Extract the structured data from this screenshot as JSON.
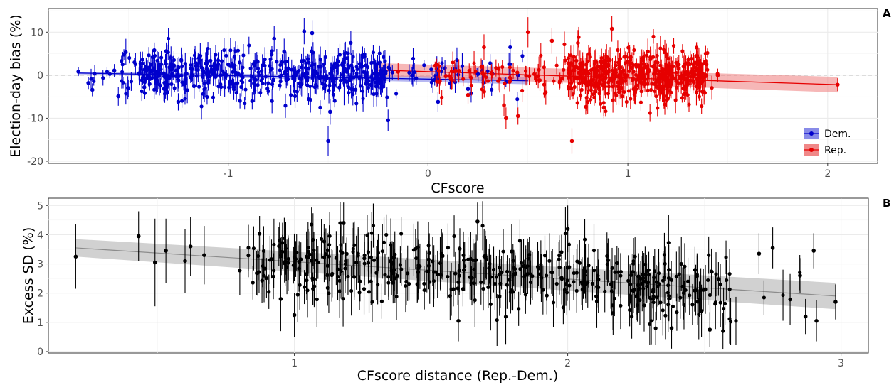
{
  "chart_data": [
    {
      "panel": "A",
      "type": "scatter",
      "title": "",
      "xlabel": "CFscore",
      "ylabel": "Election-day bias (%)",
      "xlim": [
        -1.9,
        2.25
      ],
      "ylim": [
        -20.5,
        15.5
      ],
      "xticks": [
        -1,
        0,
        1,
        2
      ],
      "xtick_labels": [
        "-1",
        "0",
        "1",
        "2"
      ],
      "yticks": [
        -20,
        -10,
        0,
        10
      ],
      "ytick_labels": [
        "-20",
        "-10",
        "0",
        "10"
      ],
      "reference_line": {
        "y": 0,
        "style": "dashed",
        "color": "#a6a6a6"
      },
      "grid": true,
      "legend": {
        "position": "bottom-right",
        "entries": [
          "Dem.",
          "Rep."
        ]
      },
      "series": [
        {
          "name": "Dem.",
          "color": "#0000cc",
          "n_points": 560,
          "x_range": [
            -1.75,
            0.5
          ],
          "y_center": 0.5,
          "points": [
            {
              "x": -1.75,
              "y": 0.8,
              "err": 1.0
            },
            {
              "x": -1.7,
              "y": -1.8,
              "err": 1.4
            },
            {
              "x": -1.68,
              "y": -3.4,
              "err": 1.5
            },
            {
              "x": -1.57,
              "y": 1.1,
              "err": 1.5
            },
            {
              "x": -1.55,
              "y": -4.9,
              "err": 2.2
            },
            {
              "x": -1.5,
              "y": -3.0,
              "err": 2.0
            },
            {
              "x": -1.42,
              "y": -2.8,
              "err": 2.0
            },
            {
              "x": -1.37,
              "y": 5.8,
              "err": 1.8
            },
            {
              "x": -1.31,
              "y": 5.6,
              "err": 2.0
            },
            {
              "x": -1.25,
              "y": -6.2,
              "err": 2.0
            },
            {
              "x": -1.14,
              "y": 4.5,
              "err": 3.0
            },
            {
              "x": -1.0,
              "y": 2.5,
              "err": 3.0
            },
            {
              "x": -0.88,
              "y": -6.0,
              "err": 2.0
            },
            {
              "x": -0.77,
              "y": 8.5,
              "err": 3.0
            },
            {
              "x": -0.72,
              "y": 5.5,
              "err": 3.0
            },
            {
              "x": -0.62,
              "y": 10.2,
              "err": 3.0
            },
            {
              "x": -0.58,
              "y": 9.8,
              "err": 3.0
            },
            {
              "x": -0.5,
              "y": -15.3,
              "err": 3.5
            },
            {
              "x": -0.49,
              "y": -8.5,
              "err": 3.0
            },
            {
              "x": -0.42,
              "y": -1.0,
              "err": 6.0
            },
            {
              "x": -0.31,
              "y": -2.0,
              "err": 3.0
            },
            {
              "x": -0.2,
              "y": -10.5,
              "err": 2.5
            },
            {
              "x": -0.08,
              "y": -0.1,
              "err": 2.0
            },
            {
              "x": 0.05,
              "y": -6.2,
              "err": 2.3
            },
            {
              "x": 0.2,
              "y": -3.2,
              "err": 1.5
            },
            {
              "x": 0.45,
              "y": 0.0,
              "err": 1.0
            }
          ],
          "fit": {
            "x": [
              -1.75,
              0.5
            ],
            "y": [
              0.5,
              -1.3
            ],
            "ci": [
              [
                0.2,
                0.8
              ],
              [
                -2.1,
                -0.5
              ]
            ]
          }
        },
        {
          "name": "Rep.",
          "color": "#e60000",
          "n_points": 560,
          "x_range": [
            -0.25,
            2.05
          ],
          "y_center": 0.0,
          "points": [
            {
              "x": -0.15,
              "y": 0.8,
              "err": 2.0
            },
            {
              "x": 0.12,
              "y": -1.2,
              "err": 2.0
            },
            {
              "x": 0.2,
              "y": -4.6,
              "err": 2.0
            },
            {
              "x": 0.28,
              "y": 6.5,
              "err": 3.0
            },
            {
              "x": 0.38,
              "y": -7.0,
              "err": 2.5
            },
            {
              "x": 0.39,
              "y": -10.0,
              "err": 2.5
            },
            {
              "x": 0.45,
              "y": -9.5,
              "err": 2.0
            },
            {
              "x": 0.5,
              "y": 10.0,
              "err": 3.5
            },
            {
              "x": 0.62,
              "y": 8.0,
              "err": 3.0
            },
            {
              "x": 0.72,
              "y": -15.3,
              "err": 3.0
            },
            {
              "x": 0.75,
              "y": 7.5,
              "err": 3.0
            },
            {
              "x": 0.88,
              "y": -7.5,
              "err": 2.5
            },
            {
              "x": 0.92,
              "y": 10.8,
              "err": 3.0
            },
            {
              "x": 1.1,
              "y": 5.5,
              "err": 3.0
            },
            {
              "x": 1.2,
              "y": -5.5,
              "err": 2.5
            },
            {
              "x": 1.35,
              "y": 2.5,
              "err": 2.0
            },
            {
              "x": 1.45,
              "y": 0.0,
              "err": 1.5
            },
            {
              "x": 2.05,
              "y": -2.2,
              "err": 1.5
            }
          ],
          "fit": {
            "x": [
              -0.25,
              2.05
            ],
            "y": [
              1.2,
              -2.2
            ],
            "ci": [
              [
                -0.2,
                2.8
              ],
              [
                -4.0,
                -0.4
              ]
            ]
          }
        }
      ]
    },
    {
      "panel": "B",
      "type": "scatter",
      "title": "",
      "xlabel": "CFscore distance (Rep.-Dem.)",
      "ylabel": "Excess SD (%)",
      "xlim": [
        0.1,
        3.1
      ],
      "ylim": [
        -0.05,
        5.25
      ],
      "xticks": [
        1,
        2,
        3
      ],
      "xtick_labels": [
        "1",
        "2",
        "3"
      ],
      "yticks": [
        0,
        1,
        2,
        3,
        4,
        5
      ],
      "ytick_labels": [
        "0",
        "1",
        "2",
        "3",
        "4",
        "5"
      ],
      "grid": true,
      "series": [
        {
          "name": "",
          "color": "#000000",
          "n_points": 450,
          "x_range": [
            0.2,
            2.98
          ],
          "points": [
            {
              "x": 0.2,
              "y": 3.25,
              "err": 1.1
            },
            {
              "x": 0.43,
              "y": 3.95,
              "err": 0.85
            },
            {
              "x": 0.49,
              "y": 3.05,
              "err": 1.5
            },
            {
              "x": 0.53,
              "y": 3.45,
              "err": 1.1
            },
            {
              "x": 0.6,
              "y": 3.1,
              "err": 1.1
            },
            {
              "x": 0.62,
              "y": 3.6,
              "err": 1.0
            },
            {
              "x": 0.67,
              "y": 3.3,
              "err": 1.0
            },
            {
              "x": 0.95,
              "y": 1.8,
              "err": 1.1
            },
            {
              "x": 1.0,
              "y": 1.25,
              "err": 0.75
            },
            {
              "x": 1.18,
              "y": 4.4,
              "err": 0.7
            },
            {
              "x": 1.67,
              "y": 4.45,
              "err": 0.65
            },
            {
              "x": 1.6,
              "y": 1.05,
              "err": 0.7
            },
            {
              "x": 2.0,
              "y": 4.2,
              "err": 0.8
            },
            {
              "x": 2.38,
              "y": 0.8,
              "err": 0.7
            },
            {
              "x": 2.52,
              "y": 0.75,
              "err": 0.6
            },
            {
              "x": 2.7,
              "y": 3.35,
              "err": 0.7
            },
            {
              "x": 2.75,
              "y": 3.55,
              "err": 0.7
            },
            {
              "x": 2.85,
              "y": 2.6,
              "err": 0.6
            },
            {
              "x": 2.87,
              "y": 1.2,
              "err": 0.6
            },
            {
              "x": 2.9,
              "y": 3.45,
              "err": 0.6
            },
            {
              "x": 2.91,
              "y": 1.05,
              "err": 0.7
            },
            {
              "x": 2.98,
              "y": 1.7,
              "err": 0.6
            }
          ],
          "fit": {
            "x": [
              0.2,
              2.98
            ],
            "y": [
              3.55,
              1.9
            ],
            "ci": [
              [
                3.25,
                3.85
              ],
              [
                1.45,
                2.35
              ]
            ]
          }
        }
      ]
    }
  ],
  "panel_tags": {
    "a": "A",
    "b": "B"
  },
  "legend": {
    "dem_label": "Dem.",
    "rep_label": "Rep.",
    "dem_color": "#0000cc",
    "rep_color": "#e60000",
    "dem_fill": "#7b7ee6",
    "rep_fill": "#ee7b7b"
  }
}
